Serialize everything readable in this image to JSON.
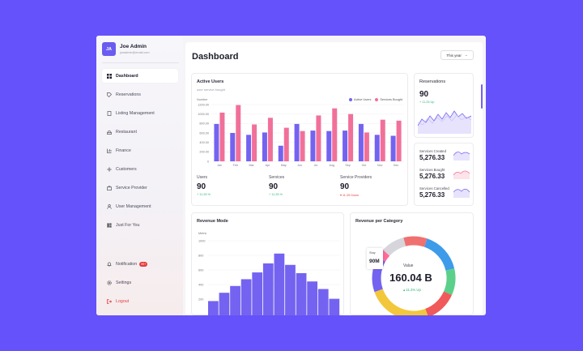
{
  "profile": {
    "initials": "JA",
    "name": "Joe Admin",
    "email": "joeadmin@email.com"
  },
  "sidebar": {
    "items": [
      {
        "label": "Dashboard",
        "icon": "dashboard-icon",
        "active": true
      },
      {
        "label": "Reservations",
        "icon": "tag-icon"
      },
      {
        "label": "Listing Management",
        "icon": "document-icon"
      },
      {
        "label": "Restaurant",
        "icon": "restaurant-icon"
      },
      {
        "label": "Finance",
        "icon": "chart-icon"
      },
      {
        "label": "Customers",
        "icon": "customers-icon"
      },
      {
        "label": "Service Provider",
        "icon": "briefcase-icon"
      },
      {
        "label": "User Management",
        "icon": "user-icon"
      },
      {
        "label": "Just For You",
        "icon": "grid-icon"
      }
    ],
    "notification_label": "Notification",
    "notification_badge": "99+",
    "settings_label": "Settings",
    "logout_label": "Logout"
  },
  "header": {
    "title": "Dashboard",
    "period": "This year"
  },
  "active_users": {
    "title": "Active Users",
    "subtitle": "user service bought",
    "legend": [
      "Active Users",
      "Services Bought"
    ],
    "colors": {
      "active": "#7463f0",
      "bought": "#f1709a"
    }
  },
  "stats": [
    {
      "label": "Users",
      "value": "90",
      "delta": "+ 11.25 %",
      "dir": "up"
    },
    {
      "label": "Services",
      "value": "90",
      "delta": "+ 11.25 %",
      "dir": "up"
    },
    {
      "label": "Service Providers",
      "value": "90",
      "delta": "▾ 11.25 Down",
      "dir": "down"
    }
  ],
  "reservations": {
    "title": "Reservations",
    "value": "90",
    "delta": "+ 11.25 Up"
  },
  "services_mini": [
    {
      "label": "Services Created",
      "value": "5,276.33",
      "color": "#7463f0"
    },
    {
      "label": "Services Bought",
      "value": "5,276.33",
      "color": "#f1709a"
    },
    {
      "label": "Services Cancelled",
      "value": "5,276.33",
      "color": "#7463f0"
    }
  ],
  "revenue_mode": {
    "title": "Revenue Mode",
    "y_caption": "Metric"
  },
  "revenue_category": {
    "title": "Revenue per Category",
    "tooltip_label": "Stay",
    "tooltip_value": "90M",
    "center_label": "Value",
    "center_value": "160.04 B",
    "center_delta": "▴ 11.2% Up"
  },
  "chart_data": [
    {
      "type": "bar",
      "title": "Active Users",
      "categories": [
        "Jan",
        "Feb",
        "Mar",
        "Apr",
        "May",
        "Jun",
        "Jul",
        "Aug",
        "Sep",
        "Oct",
        "Nov",
        "Dec"
      ],
      "ylabel": "Number",
      "yticks": [
        "1200.00",
        "1000.00",
        "800.00",
        "600.00",
        "400.00",
        "200.00",
        "0"
      ],
      "ylim": [
        0,
        1200
      ],
      "series": [
        {
          "name": "Active Users",
          "values": [
            790,
            600,
            560,
            610,
            330,
            790,
            650,
            640,
            650,
            790,
            560,
            540
          ]
        },
        {
          "name": "Services Bought",
          "values": [
            1030,
            1190,
            780,
            920,
            710,
            640,
            970,
            1120,
            1000,
            610,
            880,
            860
          ]
        }
      ]
    },
    {
      "type": "bar",
      "title": "Revenue Mode",
      "ylabel": "Metric",
      "yticks": [
        "1000",
        "800",
        "600",
        "400",
        "200"
      ],
      "ylim": [
        0,
        1000
      ],
      "values": [
        200,
        310,
        400,
        490,
        580,
        700,
        830,
        680,
        570,
        460,
        360,
        230
      ]
    },
    {
      "type": "pie",
      "title": "Revenue per Category",
      "slices": [
        {
          "value": 8,
          "color": "#f07070"
        },
        {
          "value": 14,
          "color": "#3d9be9"
        },
        {
          "value": 9,
          "color": "#5bd08b"
        },
        {
          "value": 11,
          "color": "#f05a5a"
        },
        {
          "value": 22,
          "color": "#f3c73b"
        },
        {
          "value": 12,
          "color": "#7463f0"
        },
        {
          "value": 3,
          "color": "#ff6b9a"
        },
        {
          "value": 8,
          "color": "#d7d5dc"
        }
      ]
    }
  ]
}
